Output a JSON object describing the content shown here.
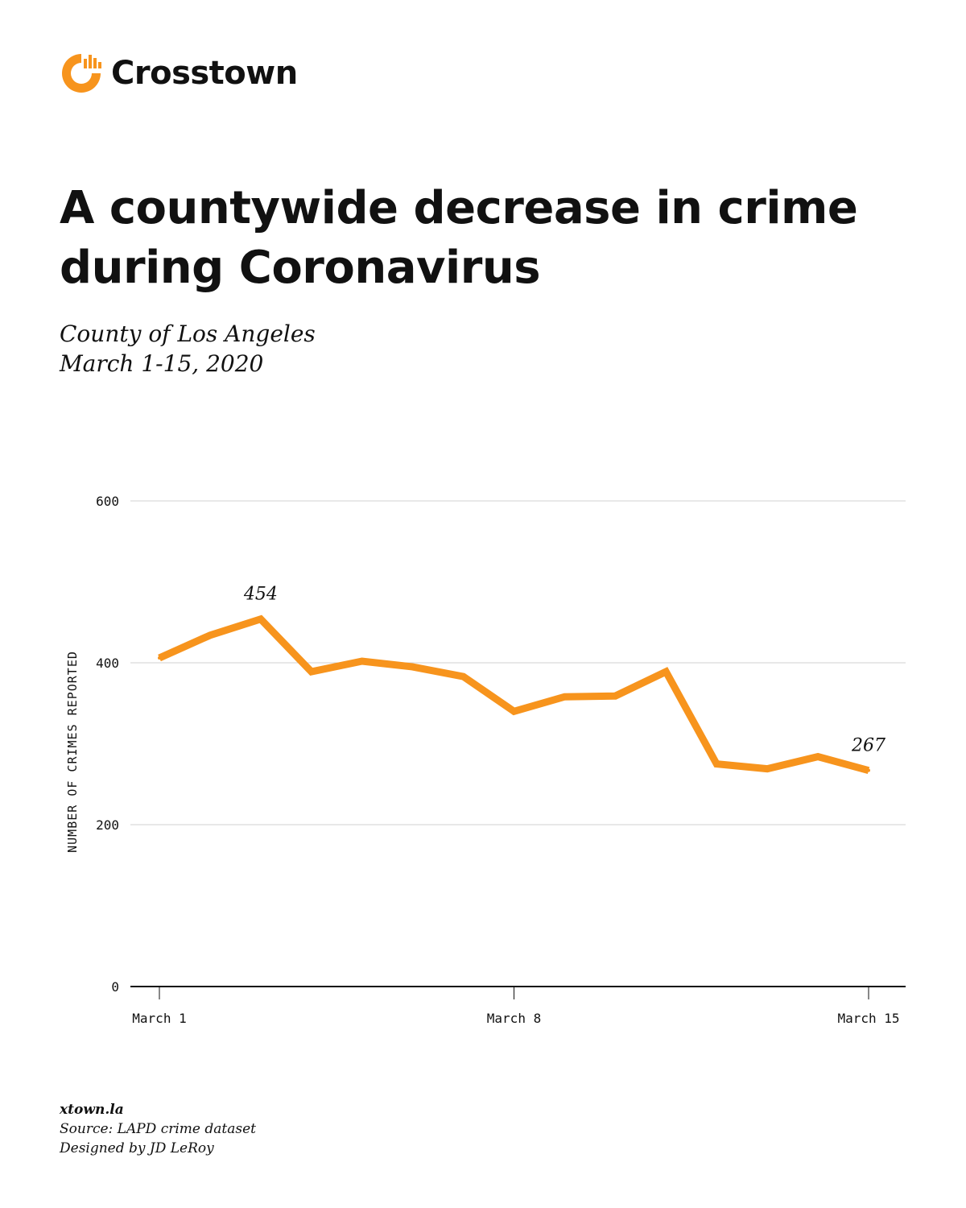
{
  "brand": {
    "name": "Crosstown",
    "color": "#F7941D"
  },
  "header": {
    "title": "A countywide decrease in crime during Coronavirus",
    "subtitle_line1": "County of Los Angeles",
    "subtitle_line2": "March 1-15, 2020"
  },
  "footer": {
    "site": "xtown.la",
    "source": "Source: LAPD crime dataset",
    "credit": "Designed by JD LeRoy"
  },
  "chart_data": {
    "type": "line",
    "title": "",
    "xlabel": "",
    "ylabel": "NUMBER OF CRIMES REPORTED",
    "ylim": [
      0,
      600
    ],
    "yticks": [
      0,
      200,
      400,
      600
    ],
    "x": [
      1,
      2,
      3,
      4,
      5,
      6,
      7,
      8,
      9,
      10,
      11,
      12,
      13,
      14,
      15
    ],
    "xticks": [
      {
        "x": 1,
        "label": "March 1"
      },
      {
        "x": 8,
        "label": "March 8"
      },
      {
        "x": 15,
        "label": "March 15"
      }
    ],
    "series": [
      {
        "values": [
          406,
          434,
          454,
          389,
          402,
          395,
          383,
          340,
          358,
          359,
          389,
          275,
          269,
          284,
          267
        ],
        "color": "#F7941D"
      }
    ],
    "annotations": [
      {
        "x": 3,
        "y": 454,
        "text": "454"
      },
      {
        "x": 15,
        "y": 267,
        "text": "267"
      }
    ],
    "grid": true,
    "gridColor": "#d0d0d0",
    "axisColor": "#111111"
  }
}
